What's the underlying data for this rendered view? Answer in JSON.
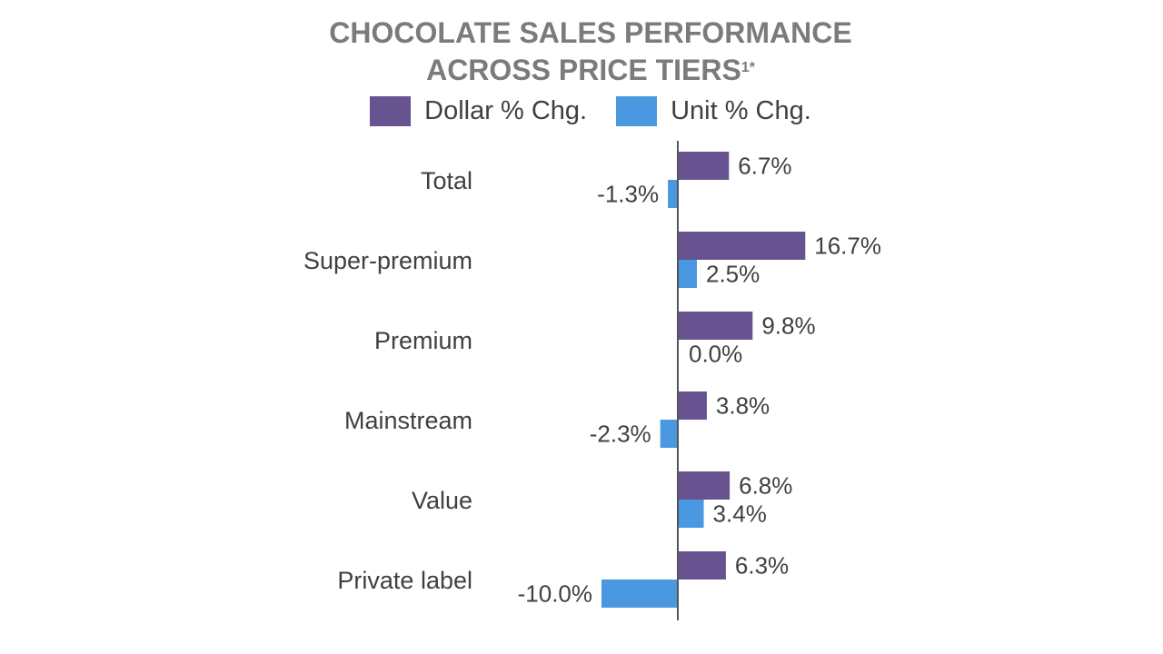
{
  "chart_data": {
    "type": "bar",
    "orientation": "horizontal",
    "title_line1": "CHOCOLATE SALES PERFORMANCE",
    "title_line2": "ACROSS PRICE TIERS",
    "title_superscript": "1*",
    "categories": [
      "Total",
      "Super-premium",
      "Premium",
      "Mainstream",
      "Value",
      "Private label"
    ],
    "series": [
      {
        "name": "Dollar % Chg.",
        "color": "#67538f",
        "values": [
          6.7,
          16.7,
          9.8,
          3.8,
          6.8,
          6.3
        ],
        "labels": [
          "6.7%",
          "16.7%",
          "9.8%",
          "3.8%",
          "6.8%",
          "6.3%"
        ]
      },
      {
        "name": "Unit % Chg.",
        "color": "#4a98e0",
        "values": [
          -1.3,
          2.5,
          0.0,
          -2.3,
          3.4,
          -10.0
        ],
        "labels": [
          "-1.3%",
          "2.5%",
          "0.0%",
          "-2.3%",
          "3.4%",
          "-10.0%"
        ]
      }
    ],
    "legend_position": "top",
    "grid": false,
    "xlim": [
      -10,
      16.7
    ]
  }
}
